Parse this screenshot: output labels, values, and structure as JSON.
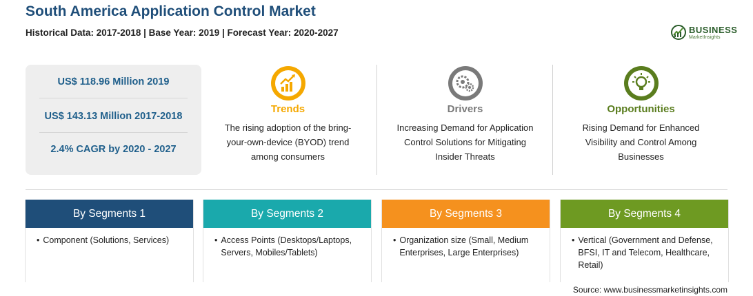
{
  "header": {
    "title": "South America Application Control Market",
    "subtitle": "Historical Data: 2017-2018 | Base Year: 2019 | Forecast Year: 2020-2027"
  },
  "logo": {
    "main": "BUSINESS",
    "sub": "MarketInsights"
  },
  "stats": [
    "US$ 118.96 Million 2019",
    "US$ 143.13 Million 2017-2018",
    "2.4% CAGR by 2020 - 2027"
  ],
  "features": [
    {
      "title": "Trends",
      "color": "#f5a800",
      "icon": "trend-chart-icon",
      "lines": [
        "The rising adoption of the bring-",
        "your-own-device (BYOD) trend",
        "among consumers"
      ]
    },
    {
      "title": "Drivers",
      "color": "#7a7a7a",
      "icon": "gears-icon",
      "lines": [
        "Increasing Demand for Application",
        "Control Solutions for Mitigating",
        "Insider Threats"
      ]
    },
    {
      "title": "Opportunities",
      "color": "#5a7d1e",
      "icon": "lightbulb-icon",
      "lines": [
        "Rising Demand for Enhanced",
        "Visibility and Control Among",
        "Businesses"
      ]
    }
  ],
  "segments": [
    {
      "title": "By Segments 1",
      "color": "#1f4e79",
      "text": "Component (Solutions, Services)"
    },
    {
      "title": "By Segments 2",
      "color": "#1aa9ac",
      "text": "Access Points (Desktops/Laptops, Servers, Mobiles/Tablets)"
    },
    {
      "title": "By Segments 3",
      "color": "#f5911e",
      "text": "Organization size (Small, Medium Enterprises, Large Enterprises)"
    },
    {
      "title": "By Segments 4",
      "color": "#6e9a22",
      "text": "Vertical (Government and Defense, BFSI, IT and Telecom, Healthcare, Retail)"
    }
  ],
  "source": "Source: www.businessmarketinsights.com"
}
